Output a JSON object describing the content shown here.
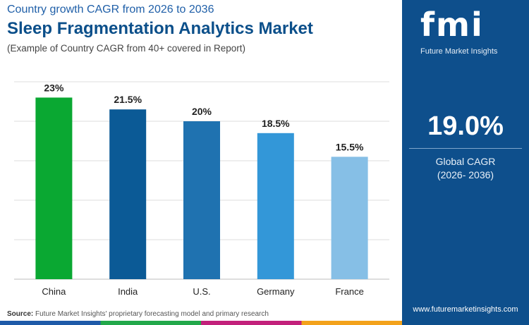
{
  "header": {
    "supertitle": "Country growth CAGR from 2026 to 2036",
    "title": "Sleep Fragmentation Analytics Market",
    "subtitle": "(Example of Country CAGR from 40+ covered in Report)"
  },
  "chart_data": {
    "type": "bar",
    "categories": [
      "China",
      "India",
      "U.S.",
      "Germany",
      "France"
    ],
    "values": [
      23,
      21.5,
      20,
      18.5,
      15.5
    ],
    "value_labels": [
      "23%",
      "21.5%",
      "20%",
      "18.5%",
      "15.5%"
    ],
    "colors": [
      "#0aa832",
      "#0b5a96",
      "#1f72b0",
      "#3397d8",
      "#86bfe6"
    ],
    "ylim": [
      0,
      25
    ],
    "grid": true
  },
  "source": {
    "label": "Source:",
    "text": "Future Market Insights' proprietary forecasting model and primary research"
  },
  "side_panel": {
    "logo_text": "fmi",
    "logo_tagline": "Future Market Insights",
    "kpi_value": "19.0%",
    "kpi_label_line1": "Global CAGR",
    "kpi_label_line2": "(2026- 2036)",
    "website": "www.futuremarketinsights.com"
  }
}
